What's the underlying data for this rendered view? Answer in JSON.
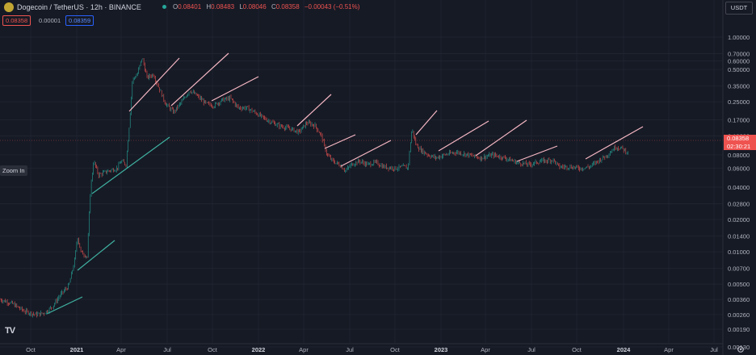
{
  "header": {
    "title": "Dogecoin / TetherUS · 12h · BINANCE",
    "ohlc": [
      {
        "k": "O",
        "v": "0.08401"
      },
      {
        "k": "H",
        "v": "0.08483"
      },
      {
        "k": "L",
        "v": "0.08046"
      },
      {
        "k": "C",
        "v": "0.08358"
      }
    ],
    "change": "−0.00043 (−0.51%)",
    "bid": "0.08358",
    "spread": "0.00001",
    "ask": "0.08359"
  },
  "toolbar": {
    "zoom_in_label": "Zoom In",
    "currency": "USDT",
    "logo_text": "TV"
  },
  "price_tag": {
    "price": "0.08358",
    "countdown": "02:30:21"
  },
  "colors": {
    "background": "#161a25",
    "up": "#26a69a",
    "down": "#ef5350",
    "trendline_green": "#3fb1a0",
    "trendline_pink": "#f6b8c4"
  },
  "chart_data": {
    "type": "candlestick",
    "symbol": "Dogecoin / TetherUS",
    "interval": "12h",
    "exchange": "BINANCE",
    "y_scale": "log",
    "y_ticks": [
      "1.00000",
      "0.70000",
      "0.60000",
      "0.50000",
      "0.35000",
      "0.25000",
      "0.17000",
      "0.12000",
      "0.08000",
      "0.06000",
      "0.04000",
      "0.02800",
      "0.02000",
      "0.01400",
      "0.01000",
      "0.00700",
      "0.00500",
      "0.00360",
      "0.00260",
      "0.00190",
      "0.00130"
    ],
    "x_ticks": [
      "Oct",
      "2021",
      "Apr",
      "Jul",
      "Oct",
      "2022",
      "Apr",
      "Jul",
      "Oct",
      "2023",
      "Apr",
      "Jul",
      "Oct",
      "2024",
      "Apr",
      "Jul"
    ],
    "last_price": 0.08358
  }
}
